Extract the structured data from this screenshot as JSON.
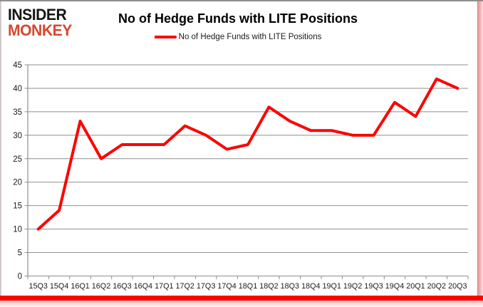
{
  "branding": {
    "logo_line1": "INSIDER",
    "logo_line2": "MONKEY",
    "logo_color_primary": "#151515",
    "logo_color_secondary": "#d4482f"
  },
  "header": {
    "title": "No of Hedge Funds with LITE Positions"
  },
  "legend": {
    "label": "No of Hedge Funds with LITE Positions",
    "marker_color": "#ff0000"
  },
  "chart_data": {
    "type": "line",
    "title": "No of Hedge Funds with LITE Positions",
    "categories": [
      "15Q3",
      "15Q4",
      "16Q1",
      "16Q2",
      "16Q3",
      "16Q4",
      "17Q1",
      "17Q2",
      "17Q3",
      "17Q4",
      "18Q1",
      "18Q2",
      "18Q3",
      "18Q4",
      "19Q1",
      "19Q2",
      "19Q3",
      "19Q4",
      "20Q1",
      "20Q2",
      "20Q3"
    ],
    "series": [
      {
        "name": "No of Hedge Funds with LITE Positions",
        "color": "#ff0000",
        "values": [
          10,
          14,
          33,
          25,
          28,
          28,
          28,
          32,
          30,
          27,
          28,
          36,
          33,
          31,
          31,
          30,
          30,
          37,
          34,
          42,
          40
        ]
      }
    ],
    "xlabel": "",
    "ylabel": "",
    "ylim": [
      0,
      45
    ],
    "yticks": [
      0,
      5,
      10,
      15,
      20,
      25,
      30,
      35,
      40,
      45
    ],
    "grid": true,
    "gridline_color": "#8e8e8e",
    "axis_color": "#8e8e8e",
    "tick_label_color": "#1a1a1a",
    "legend_position": "top"
  },
  "frame": {
    "top_border_color": "#8f8f8f",
    "left_tint_color": "#f8dcdc",
    "right_tint_color": "#ef9595",
    "bottom_bar_color": "#ff0000"
  }
}
